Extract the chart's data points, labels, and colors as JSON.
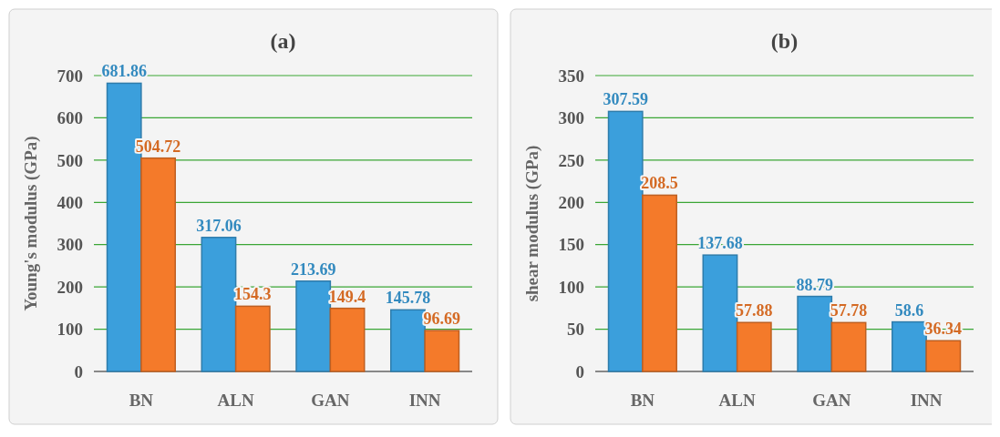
{
  "chart_data": [
    {
      "type": "bar",
      "title": "(a)",
      "ylabel": "Young's modulus (GPa)",
      "categories": [
        "BN",
        "ALN",
        "GAN",
        "INN"
      ],
      "series": [
        {
          "color": "#3b9fdc",
          "values": [
            681.86,
            317.06,
            213.69,
            145.78
          ]
        },
        {
          "color": "#f47a2a",
          "values": [
            504.72,
            154.3,
            149.4,
            96.69
          ]
        }
      ],
      "ylim": [
        0,
        700
      ],
      "yticks": [
        0,
        100,
        200,
        300,
        400,
        500,
        600,
        700
      ],
      "grid": "y",
      "data_labels": true
    },
    {
      "type": "bar",
      "title": "(b)",
      "ylabel": "shear modulus (GPa)",
      "categories": [
        "BN",
        "ALN",
        "GAN",
        "INN"
      ],
      "series": [
        {
          "color": "#3b9fdc",
          "values": [
            307.59,
            137.68,
            88.79,
            58.6
          ]
        },
        {
          "color": "#f47a2a",
          "values": [
            208.5,
            57.88,
            57.78,
            36.34
          ]
        }
      ],
      "ylim": [
        0,
        350
      ],
      "yticks": [
        0,
        50,
        100,
        150,
        200,
        250,
        300,
        350
      ],
      "grid": "y",
      "data_labels": true
    }
  ]
}
